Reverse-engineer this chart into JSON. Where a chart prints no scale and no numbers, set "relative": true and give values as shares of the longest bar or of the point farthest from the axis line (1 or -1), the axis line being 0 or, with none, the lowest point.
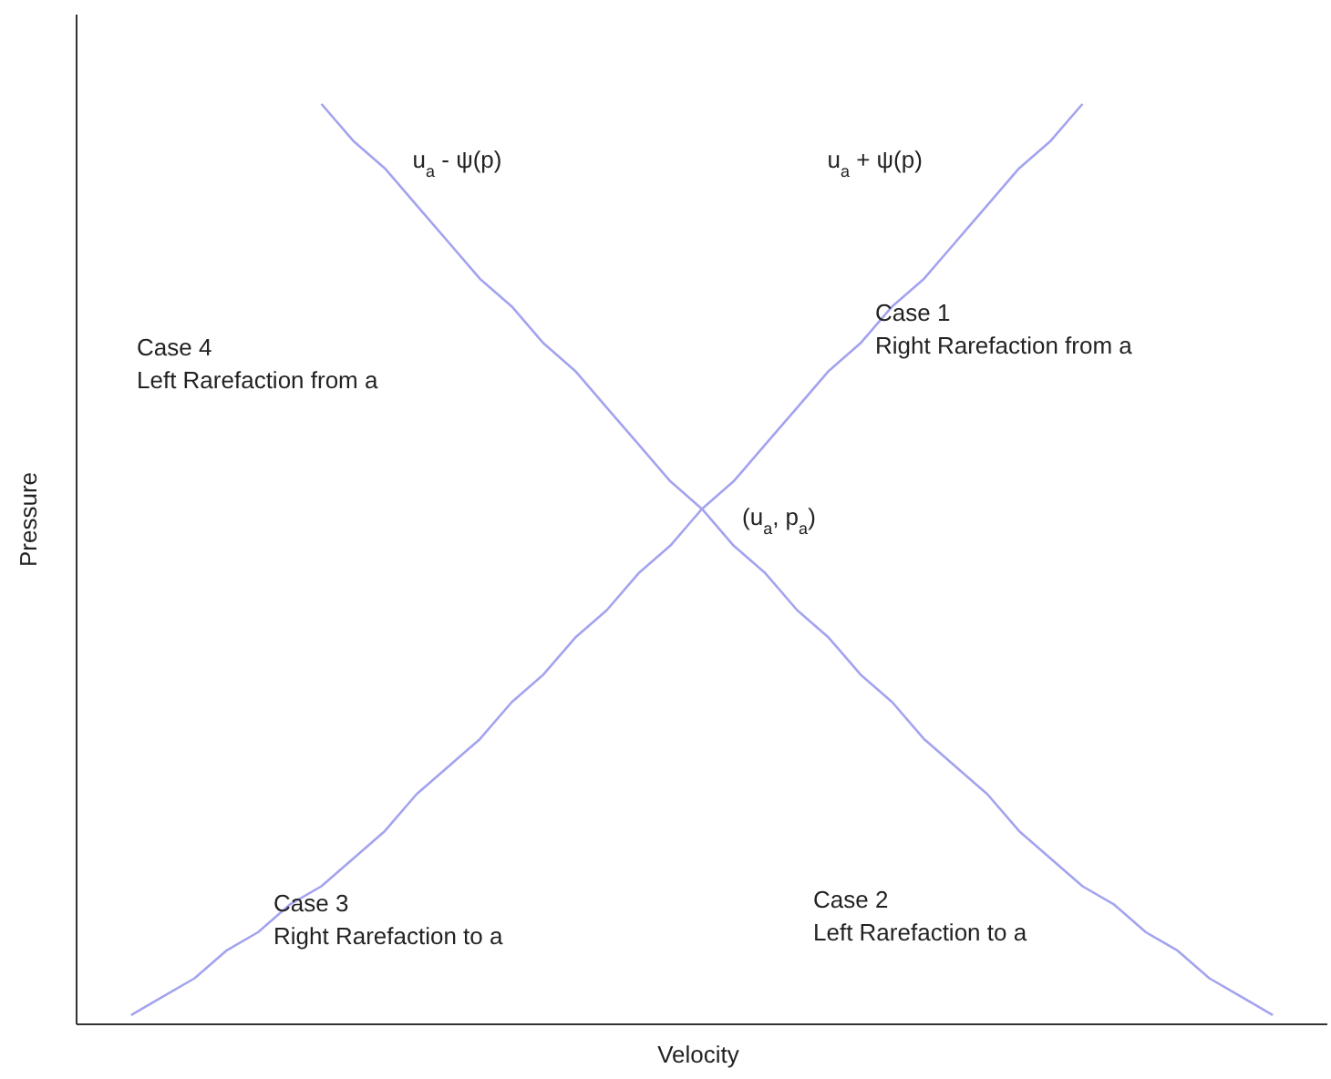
{
  "chart_data": {
    "type": "line",
    "relative": true,
    "xlabel": "Velocity",
    "ylabel": "Pressure",
    "marker": "none",
    "line_style": "solid",
    "categories": [
      null,
      null,
      null,
      null,
      null,
      null,
      null,
      null,
      null,
      null,
      null,
      null,
      null,
      null,
      null,
      null,
      null,
      null,
      null,
      null,
      null,
      null,
      null,
      null,
      null,
      null,
      null,
      null,
      null,
      null,
      null,
      null,
      null,
      null,
      null,
      null,
      null
    ],
    "series": [
      {
        "name": "u$_{a}$ + ψ(p)",
        "color": "#a3a3ef",
        "values": [
          0.01,
          0.03,
          0.05,
          0.08,
          0.1,
          0.13,
          0.15,
          0.18,
          0.21,
          0.25,
          0.28,
          0.31,
          0.35,
          0.38,
          0.42,
          0.45,
          0.49,
          0.52,
          0.56,
          0.59,
          0.63,
          0.67,
          0.71,
          0.74,
          0.78,
          0.81,
          0.85,
          0.89,
          0.93,
          0.96,
          1.0,
          null,
          null,
          null,
          null,
          null,
          null
        ]
      },
      {
        "name": "u$_{a}$ - ψ(p)",
        "color": "#a3a3ef",
        "values": [
          null,
          null,
          null,
          null,
          null,
          null,
          1.0,
          0.96,
          0.93,
          0.89,
          0.85,
          0.81,
          0.78,
          0.74,
          0.71,
          0.67,
          0.63,
          0.59,
          0.56,
          0.52,
          0.49,
          0.45,
          0.42,
          0.38,
          0.35,
          0.31,
          0.28,
          0.25,
          0.21,
          0.18,
          0.15,
          0.13,
          0.1,
          0.08,
          0.05,
          0.03,
          0.01
        ]
      }
    ],
    "annotations": [
      "(u$_{a}$, p$_{a}$)",
      "Case 1\nRight Rarefaction from a",
      "Case 2\nLeft Rarefaction to a",
      "Case 3\nRight Rarefaction to a",
      "Case 4\nLeft Rarefaction from a"
    ]
  }
}
